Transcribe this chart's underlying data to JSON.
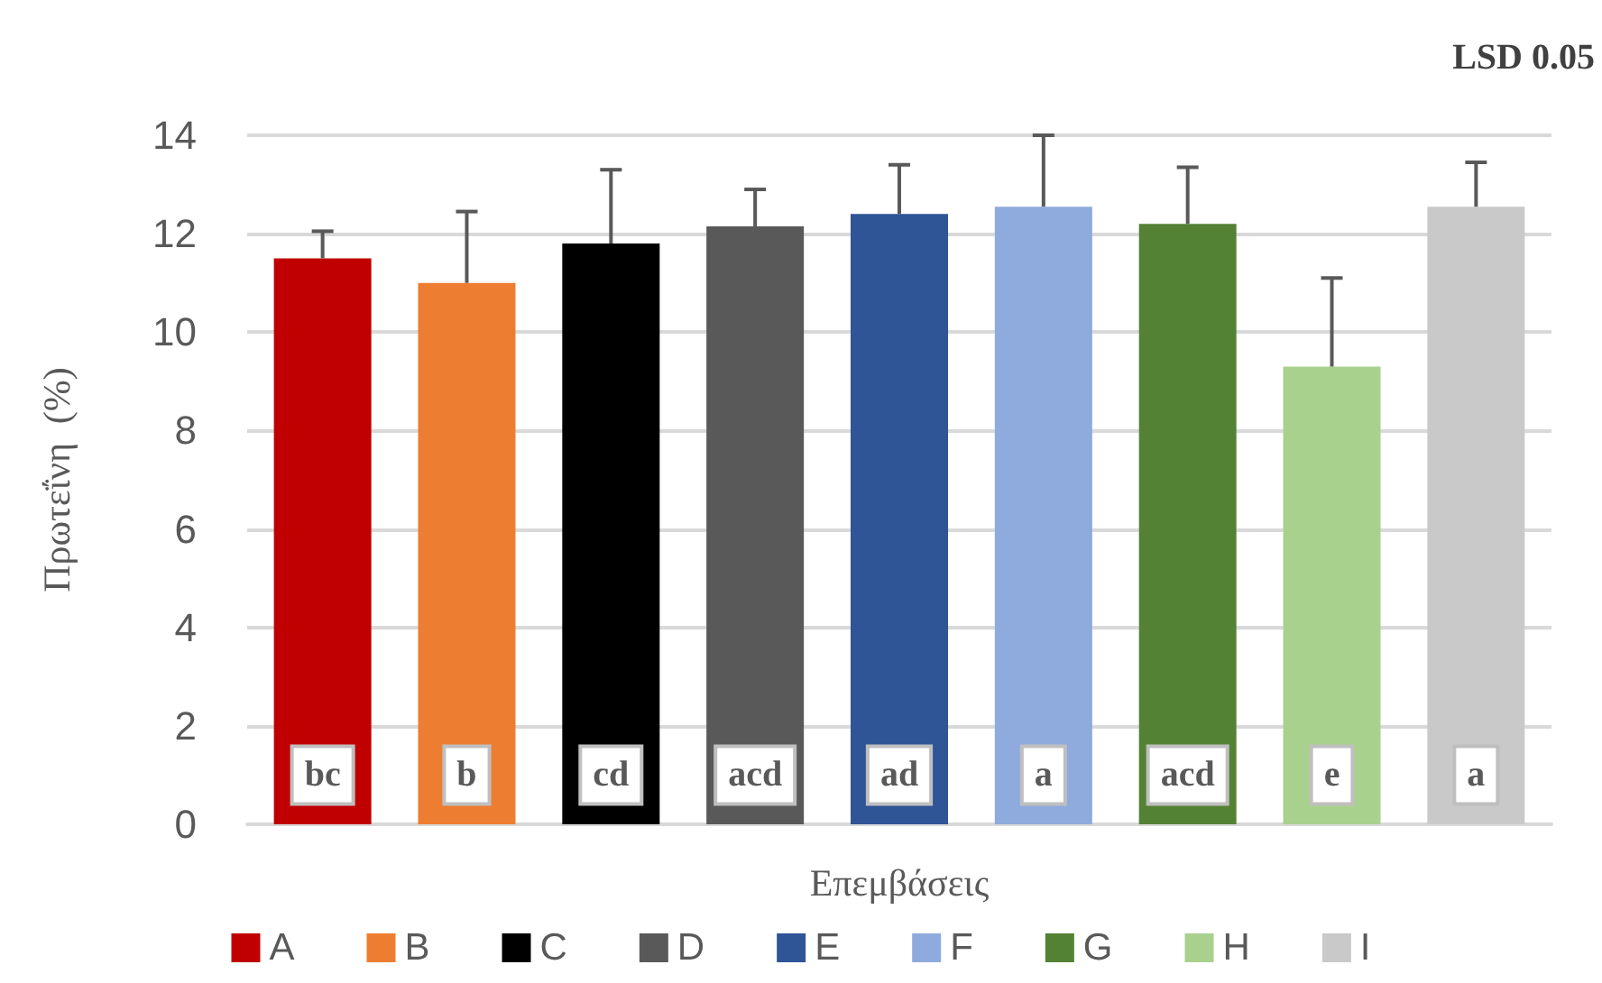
{
  "chart_data": {
    "type": "bar",
    "xlabel": "Επεμβάσεις",
    "ylabel": "Πρωτεΐνη  (%)",
    "categories": [
      null
    ],
    "series": [
      {
        "name": "A",
        "color": "#c00000",
        "values": [
          11.5
        ],
        "errors": [
          [
            11.5,
            12.05
          ]
        ]
      },
      {
        "name": "B",
        "color": "#ed7d31",
        "values": [
          11.0
        ],
        "errors": [
          [
            11.0,
            12.45
          ]
        ]
      },
      {
        "name": "C",
        "color": "#000000",
        "values": [
          11.8
        ],
        "errors": [
          [
            11.8,
            13.3
          ]
        ]
      },
      {
        "name": "D",
        "color": "#595959",
        "values": [
          12.15
        ],
        "errors": [
          [
            12.15,
            12.9
          ]
        ]
      },
      {
        "name": "E",
        "color": "#2f5597",
        "values": [
          12.4
        ],
        "errors": [
          [
            12.4,
            13.4
          ]
        ]
      },
      {
        "name": "F",
        "color": "#8faadc",
        "values": [
          12.55
        ],
        "errors": [
          [
            12.55,
            14.0
          ]
        ]
      },
      {
        "name": "G",
        "color": "#548235",
        "values": [
          12.2
        ],
        "errors": [
          [
            12.2,
            13.35
          ]
        ]
      },
      {
        "name": "H",
        "color": "#a9d18e",
        "values": [
          9.3
        ],
        "errors": [
          [
            9.3,
            11.1
          ]
        ]
      },
      {
        "name": "I",
        "color": "#c9c9c9",
        "values": [
          12.55
        ],
        "errors": [
          [
            12.55,
            13.45
          ]
        ]
      }
    ],
    "ylim": [
      0,
      14
    ],
    "yticks": [
      0,
      2,
      4,
      6,
      8,
      10,
      12,
      14
    ],
    "grid": "y",
    "legend": "bottom",
    "tick_labels": "y",
    "annotations": [
      "LSD 0.05",
      "bc",
      "b",
      "cd",
      "acd",
      "ad",
      "a",
      "acd",
      "e",
      "a"
    ]
  }
}
